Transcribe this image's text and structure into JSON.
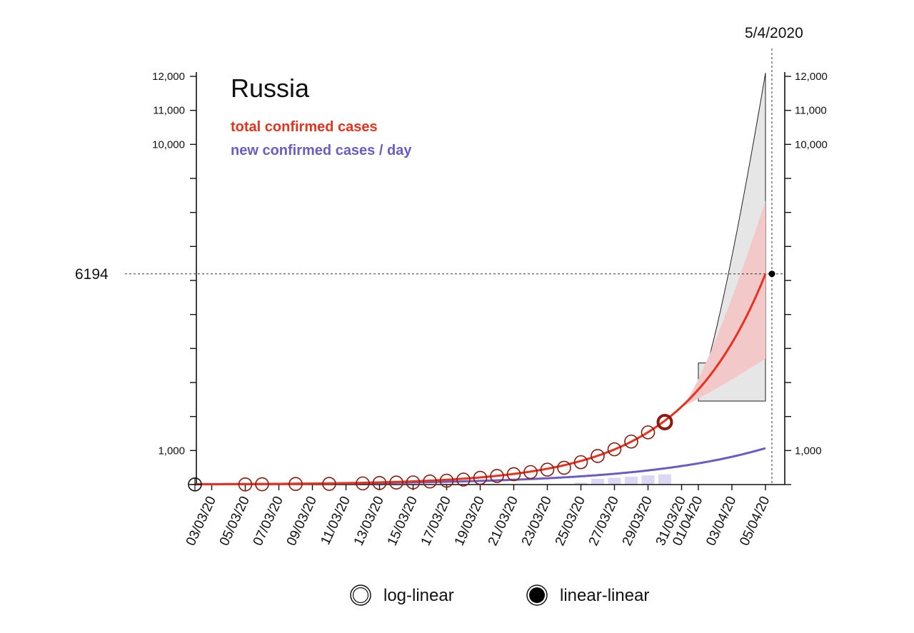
{
  "chart_data": {
    "type": "line",
    "title": "Russia",
    "xlabel": "",
    "ylabel": "",
    "x_range": [
      "02/03/20",
      "06/04/20"
    ],
    "y_scale": "linear (pre-log shape)",
    "ylim": [
      0,
      12000
    ],
    "y_tick_values": [
      0,
      1000,
      2000,
      3000,
      4000,
      5000,
      6000,
      7000,
      8000,
      9000,
      10000,
      11000,
      12000
    ],
    "y_tick_labels": [
      {
        "value": 1000,
        "label": "1,000"
      },
      {
        "value": 10000,
        "label": "10,000"
      },
      {
        "value": 11000,
        "label": "11,000"
      },
      {
        "value": 12000,
        "label": "12,000"
      }
    ],
    "right_y_tick_labels": [
      {
        "value": 1000,
        "label": "1,000"
      },
      {
        "value": 10000,
        "label": "10,000"
      },
      {
        "value": 11000,
        "label": "11,000"
      },
      {
        "value": 12000,
        "label": "12,000"
      }
    ],
    "x_tick_dates": [
      "03/03/20",
      "05/03/20",
      "07/03/20",
      "09/03/20",
      "11/03/20",
      "13/03/20",
      "15/03/20",
      "17/03/20",
      "19/03/20",
      "21/03/20",
      "23/03/20",
      "25/03/20",
      "27/03/20",
      "29/03/20",
      "31/03/20",
      "01/04/20",
      "03/04/20",
      "05/04/20"
    ],
    "x_minor_tick_dates": [
      "03/03/20",
      "05/03/20",
      "07/03/20",
      "09/03/20",
      "11/03/20",
      "13/03/20",
      "15/03/20",
      "17/03/20",
      "19/03/20",
      "21/03/20",
      "23/03/20",
      "25/03/20",
      "27/03/20",
      "29/03/20",
      "31/03/20",
      "01/04/20",
      "03/04/20",
      "05/04/20"
    ],
    "legend": [
      {
        "label": "total confirmed cases",
        "color": "#e8321e"
      },
      {
        "label": "new confirmed cases / day",
        "color": "#6b5cc4"
      }
    ],
    "legend_position": "top-left",
    "series": [
      {
        "name": "total confirmed cases",
        "kind": "observed",
        "color": "#8b1a10",
        "points": [
          {
            "x": "02/03/20",
            "y": 3
          },
          {
            "x": "05/03/20",
            "y": 4
          },
          {
            "x": "06/03/20",
            "y": 10
          },
          {
            "x": "08/03/20",
            "y": 17
          },
          {
            "x": "10/03/20",
            "y": 20
          },
          {
            "x": "12/03/20",
            "y": 34
          },
          {
            "x": "13/03/20",
            "y": 45
          },
          {
            "x": "14/03/20",
            "y": 59
          },
          {
            "x": "15/03/20",
            "y": 63
          },
          {
            "x": "16/03/20",
            "y": 90
          },
          {
            "x": "17/03/20",
            "y": 114
          },
          {
            "x": "18/03/20",
            "y": 147
          },
          {
            "x": "19/03/20",
            "y": 199
          },
          {
            "x": "20/03/20",
            "y": 253
          },
          {
            "x": "21/03/20",
            "y": 306
          },
          {
            "x": "22/03/20",
            "y": 367
          },
          {
            "x": "23/03/20",
            "y": 438
          },
          {
            "x": "24/03/20",
            "y": 495
          },
          {
            "x": "25/03/20",
            "y": 658
          },
          {
            "x": "26/03/20",
            "y": 840
          },
          {
            "x": "27/03/20",
            "y": 1036
          },
          {
            "x": "28/03/20",
            "y": 1264
          },
          {
            "x": "29/03/20",
            "y": 1534
          },
          {
            "x": "30/03/20",
            "y": 1836
          }
        ]
      },
      {
        "name": "total confirmed cases",
        "kind": "fit",
        "color": "#e8321e",
        "x_start": "02/03/20",
        "x_end": "05/04/20",
        "end_value": 6194,
        "growth_rate_per_day": 0.199
      },
      {
        "name": "new confirmed cases / day",
        "kind": "fit",
        "color": "#6b5cc4",
        "x_start": "02/03/20",
        "x_end": "05/04/20",
        "end_value": 1070
      },
      {
        "name": "new confirmed cases / day",
        "kind": "bars",
        "color": "#dcd8f4",
        "points": [
          {
            "x": "25/03/20",
            "y": 60
          },
          {
            "x": "26/03/20",
            "y": 170
          },
          {
            "x": "27/03/20",
            "y": 200
          },
          {
            "x": "28/03/20",
            "y": 230
          },
          {
            "x": "29/03/20",
            "y": 270
          },
          {
            "x": "30/03/20",
            "y": 300
          }
        ]
      }
    ],
    "bands": [
      {
        "name": "inner interval",
        "color": "#f2c8c8",
        "x_start": "31/03/20",
        "x_end": "05/04/20",
        "low_end": 3700,
        "high_end": 8350
      },
      {
        "name": "outer interval",
        "color": "#e6e6e6",
        "x_start": "01/04/20",
        "x_end": "05/04/20",
        "low_end": 2730,
        "high_end": 12100
      }
    ],
    "reference_lines": {
      "horizontal": {
        "value": 6194,
        "label": "6194"
      },
      "vertical": {
        "x": "05/04/20",
        "label": "5/4/2020"
      }
    },
    "bottom_legend": [
      {
        "label": "log-linear",
        "marker": "open-circle"
      },
      {
        "label": "linear-linear",
        "marker": "filled-circle"
      }
    ],
    "grid": false
  }
}
